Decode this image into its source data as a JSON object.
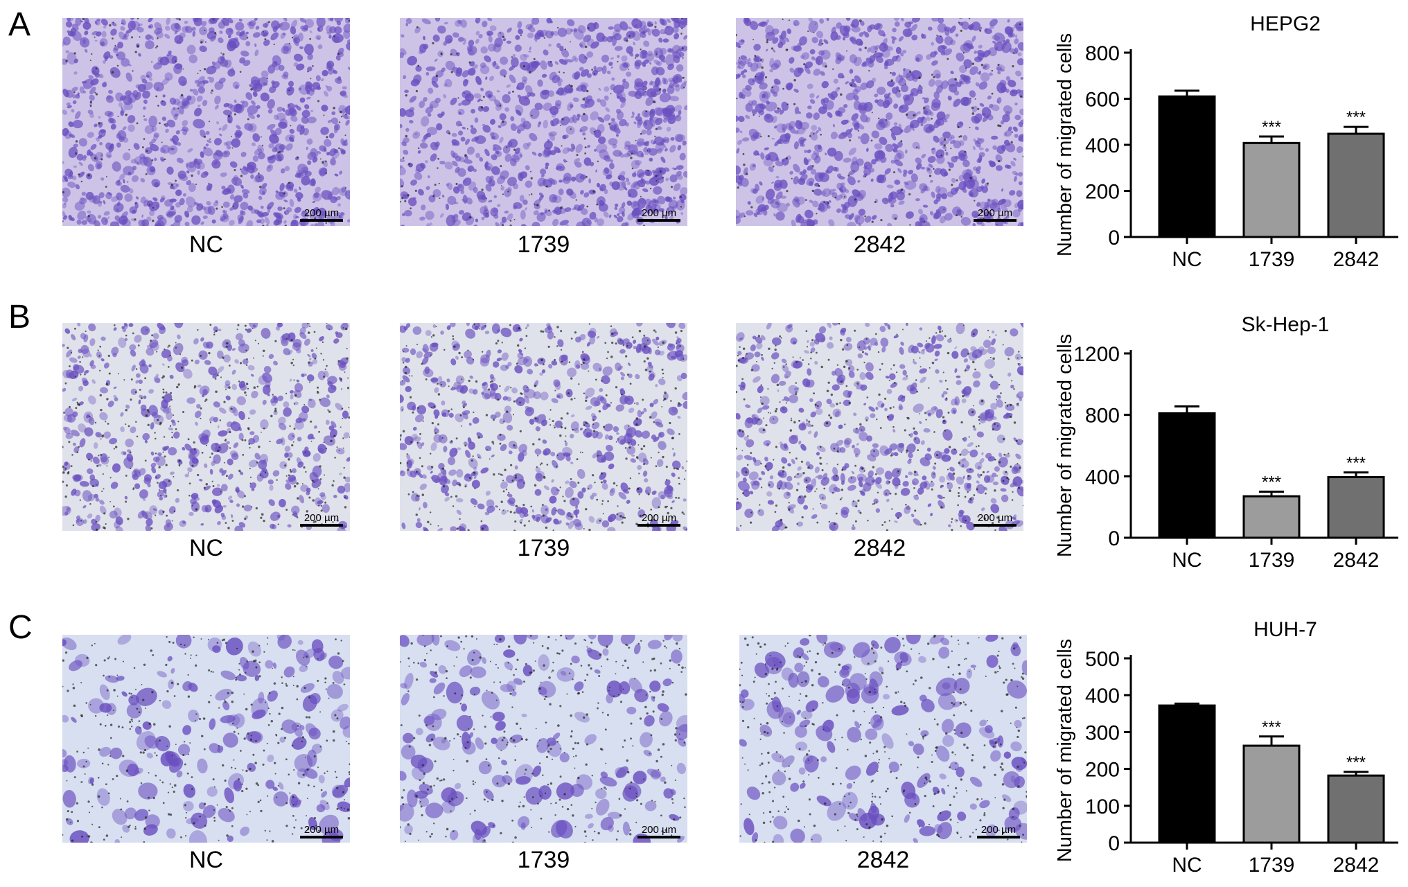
{
  "panels": [
    {
      "letter": "A",
      "images": [
        {
          "label": "NC",
          "scale": "200 µm"
        },
        {
          "label": "1739",
          "scale": "200 µm"
        },
        {
          "label": "2842",
          "scale": "200 µm"
        }
      ]
    },
    {
      "letter": "B",
      "images": [
        {
          "label": "NC",
          "scale": "200 µm"
        },
        {
          "label": "1739",
          "scale": "200 µm"
        },
        {
          "label": "2842",
          "scale": "200 µm"
        }
      ]
    },
    {
      "letter": "C",
      "images": [
        {
          "label": "NC",
          "scale": "200 µm"
        },
        {
          "label": "1739",
          "scale": "200 µm"
        },
        {
          "label": "2842",
          "scale": "200 µm"
        }
      ]
    }
  ],
  "stain_color": "#6a4fc0",
  "chart_data": [
    {
      "type": "bar",
      "title": "HEPG2",
      "ylabel": "Number of migrated cells",
      "categories": [
        "NC",
        "1739",
        "2842"
      ],
      "values": [
        610,
        408,
        448
      ],
      "errors": [
        25,
        28,
        30
      ],
      "significance": [
        "",
        "***",
        "***"
      ],
      "ylim": [
        0,
        800
      ],
      "yticks": [
        0,
        200,
        400,
        600,
        800
      ],
      "colors": [
        "#000000",
        "#9c9c9c",
        "#707070"
      ]
    },
    {
      "type": "bar",
      "title": "Sk-Hep-1",
      "ylabel": "Number of migrated cells",
      "categories": [
        "NC",
        "1739",
        "2842"
      ],
      "values": [
        810,
        270,
        395
      ],
      "errors": [
        45,
        30,
        30
      ],
      "significance": [
        "",
        "***",
        "***"
      ],
      "ylim": [
        0,
        1200
      ],
      "yticks": [
        0,
        400,
        800,
        1200
      ],
      "colors": [
        "#000000",
        "#9c9c9c",
        "#707070"
      ]
    },
    {
      "type": "bar",
      "title": "HUH-7",
      "ylabel": "Number of migrated cells",
      "categories": [
        "NC",
        "1739",
        "2842"
      ],
      "values": [
        372,
        263,
        182
      ],
      "errors": [
        5,
        25,
        10
      ],
      "significance": [
        "",
        "***",
        "***"
      ],
      "ylim": [
        0,
        500
      ],
      "yticks": [
        0,
        100,
        200,
        300,
        400,
        500
      ],
      "colors": [
        "#000000",
        "#9c9c9c",
        "#707070"
      ]
    }
  ]
}
